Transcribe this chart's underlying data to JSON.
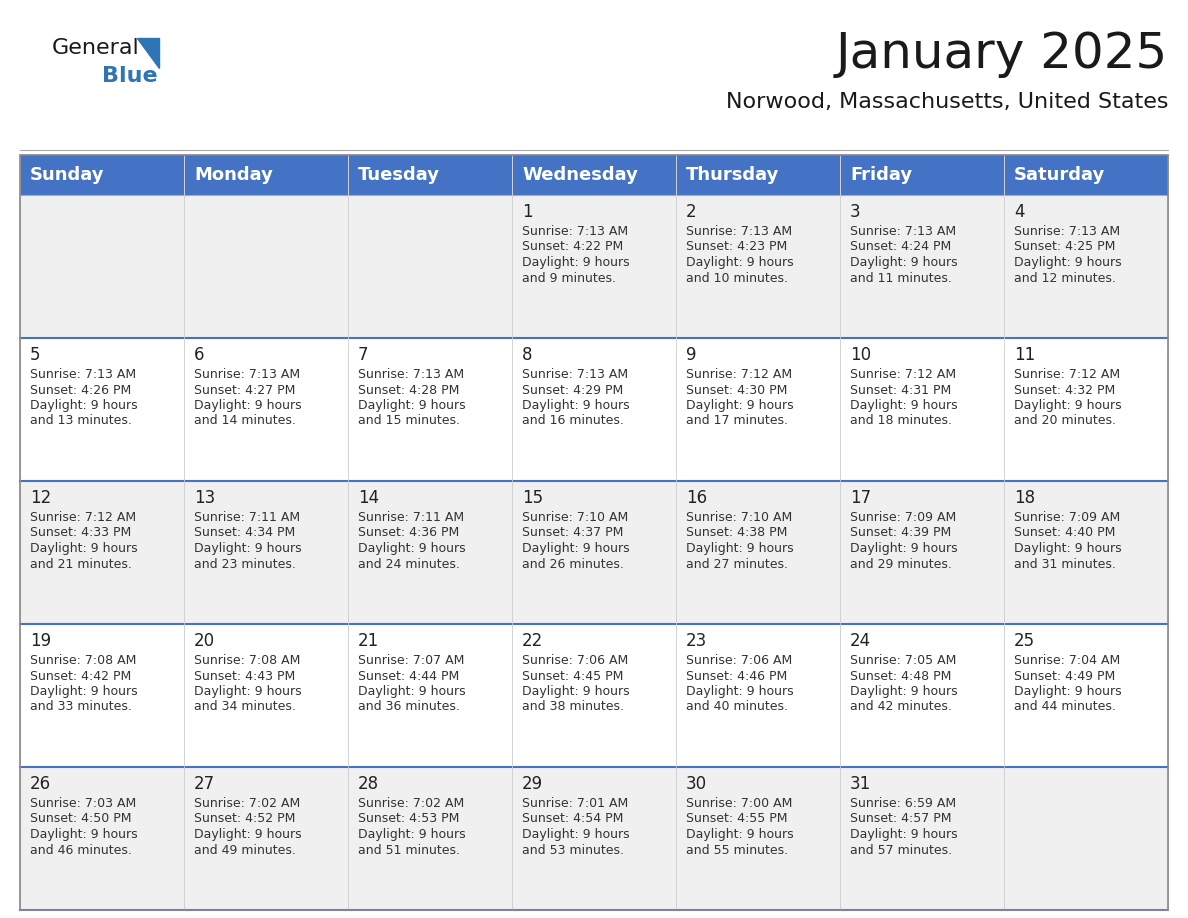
{
  "title": "January 2025",
  "subtitle": "Norwood, Massachusetts, United States",
  "header_bg_color": "#4472C4",
  "header_text_color": "#FFFFFF",
  "cell_bg_color_odd": "#F0F0F0",
  "cell_bg_color_even": "#FFFFFF",
  "cell_text_color": "#333333",
  "day_number_color": "#222222",
  "row_divider_color": "#4472C4",
  "col_divider_color": "#CCCCCC",
  "days_of_week": [
    "Sunday",
    "Monday",
    "Tuesday",
    "Wednesday",
    "Thursday",
    "Friday",
    "Saturday"
  ],
  "calendar_data": [
    [
      {
        "day": "",
        "sunrise": "",
        "sunset": "",
        "daylight": ""
      },
      {
        "day": "",
        "sunrise": "",
        "sunset": "",
        "daylight": ""
      },
      {
        "day": "",
        "sunrise": "",
        "sunset": "",
        "daylight": ""
      },
      {
        "day": "1",
        "sunrise": "Sunrise: 7:13 AM",
        "sunset": "Sunset: 4:22 PM",
        "daylight": "Daylight: 9 hours\nand 9 minutes."
      },
      {
        "day": "2",
        "sunrise": "Sunrise: 7:13 AM",
        "sunset": "Sunset: 4:23 PM",
        "daylight": "Daylight: 9 hours\nand 10 minutes."
      },
      {
        "day": "3",
        "sunrise": "Sunrise: 7:13 AM",
        "sunset": "Sunset: 4:24 PM",
        "daylight": "Daylight: 9 hours\nand 11 minutes."
      },
      {
        "day": "4",
        "sunrise": "Sunrise: 7:13 AM",
        "sunset": "Sunset: 4:25 PM",
        "daylight": "Daylight: 9 hours\nand 12 minutes."
      }
    ],
    [
      {
        "day": "5",
        "sunrise": "Sunrise: 7:13 AM",
        "sunset": "Sunset: 4:26 PM",
        "daylight": "Daylight: 9 hours\nand 13 minutes."
      },
      {
        "day": "6",
        "sunrise": "Sunrise: 7:13 AM",
        "sunset": "Sunset: 4:27 PM",
        "daylight": "Daylight: 9 hours\nand 14 minutes."
      },
      {
        "day": "7",
        "sunrise": "Sunrise: 7:13 AM",
        "sunset": "Sunset: 4:28 PM",
        "daylight": "Daylight: 9 hours\nand 15 minutes."
      },
      {
        "day": "8",
        "sunrise": "Sunrise: 7:13 AM",
        "sunset": "Sunset: 4:29 PM",
        "daylight": "Daylight: 9 hours\nand 16 minutes."
      },
      {
        "day": "9",
        "sunrise": "Sunrise: 7:12 AM",
        "sunset": "Sunset: 4:30 PM",
        "daylight": "Daylight: 9 hours\nand 17 minutes."
      },
      {
        "day": "10",
        "sunrise": "Sunrise: 7:12 AM",
        "sunset": "Sunset: 4:31 PM",
        "daylight": "Daylight: 9 hours\nand 18 minutes."
      },
      {
        "day": "11",
        "sunrise": "Sunrise: 7:12 AM",
        "sunset": "Sunset: 4:32 PM",
        "daylight": "Daylight: 9 hours\nand 20 minutes."
      }
    ],
    [
      {
        "day": "12",
        "sunrise": "Sunrise: 7:12 AM",
        "sunset": "Sunset: 4:33 PM",
        "daylight": "Daylight: 9 hours\nand 21 minutes."
      },
      {
        "day": "13",
        "sunrise": "Sunrise: 7:11 AM",
        "sunset": "Sunset: 4:34 PM",
        "daylight": "Daylight: 9 hours\nand 23 minutes."
      },
      {
        "day": "14",
        "sunrise": "Sunrise: 7:11 AM",
        "sunset": "Sunset: 4:36 PM",
        "daylight": "Daylight: 9 hours\nand 24 minutes."
      },
      {
        "day": "15",
        "sunrise": "Sunrise: 7:10 AM",
        "sunset": "Sunset: 4:37 PM",
        "daylight": "Daylight: 9 hours\nand 26 minutes."
      },
      {
        "day": "16",
        "sunrise": "Sunrise: 7:10 AM",
        "sunset": "Sunset: 4:38 PM",
        "daylight": "Daylight: 9 hours\nand 27 minutes."
      },
      {
        "day": "17",
        "sunrise": "Sunrise: 7:09 AM",
        "sunset": "Sunset: 4:39 PM",
        "daylight": "Daylight: 9 hours\nand 29 minutes."
      },
      {
        "day": "18",
        "sunrise": "Sunrise: 7:09 AM",
        "sunset": "Sunset: 4:40 PM",
        "daylight": "Daylight: 9 hours\nand 31 minutes."
      }
    ],
    [
      {
        "day": "19",
        "sunrise": "Sunrise: 7:08 AM",
        "sunset": "Sunset: 4:42 PM",
        "daylight": "Daylight: 9 hours\nand 33 minutes."
      },
      {
        "day": "20",
        "sunrise": "Sunrise: 7:08 AM",
        "sunset": "Sunset: 4:43 PM",
        "daylight": "Daylight: 9 hours\nand 34 minutes."
      },
      {
        "day": "21",
        "sunrise": "Sunrise: 7:07 AM",
        "sunset": "Sunset: 4:44 PM",
        "daylight": "Daylight: 9 hours\nand 36 minutes."
      },
      {
        "day": "22",
        "sunrise": "Sunrise: 7:06 AM",
        "sunset": "Sunset: 4:45 PM",
        "daylight": "Daylight: 9 hours\nand 38 minutes."
      },
      {
        "day": "23",
        "sunrise": "Sunrise: 7:06 AM",
        "sunset": "Sunset: 4:46 PM",
        "daylight": "Daylight: 9 hours\nand 40 minutes."
      },
      {
        "day": "24",
        "sunrise": "Sunrise: 7:05 AM",
        "sunset": "Sunset: 4:48 PM",
        "daylight": "Daylight: 9 hours\nand 42 minutes."
      },
      {
        "day": "25",
        "sunrise": "Sunrise: 7:04 AM",
        "sunset": "Sunset: 4:49 PM",
        "daylight": "Daylight: 9 hours\nand 44 minutes."
      }
    ],
    [
      {
        "day": "26",
        "sunrise": "Sunrise: 7:03 AM",
        "sunset": "Sunset: 4:50 PM",
        "daylight": "Daylight: 9 hours\nand 46 minutes."
      },
      {
        "day": "27",
        "sunrise": "Sunrise: 7:02 AM",
        "sunset": "Sunset: 4:52 PM",
        "daylight": "Daylight: 9 hours\nand 49 minutes."
      },
      {
        "day": "28",
        "sunrise": "Sunrise: 7:02 AM",
        "sunset": "Sunset: 4:53 PM",
        "daylight": "Daylight: 9 hours\nand 51 minutes."
      },
      {
        "day": "29",
        "sunrise": "Sunrise: 7:01 AM",
        "sunset": "Sunset: 4:54 PM",
        "daylight": "Daylight: 9 hours\nand 53 minutes."
      },
      {
        "day": "30",
        "sunrise": "Sunrise: 7:00 AM",
        "sunset": "Sunset: 4:55 PM",
        "daylight": "Daylight: 9 hours\nand 55 minutes."
      },
      {
        "day": "31",
        "sunrise": "Sunrise: 6:59 AM",
        "sunset": "Sunset: 4:57 PM",
        "daylight": "Daylight: 9 hours\nand 57 minutes."
      },
      {
        "day": "",
        "sunrise": "",
        "sunset": "",
        "daylight": ""
      }
    ]
  ],
  "logo_general_color": "#1a1a1a",
  "logo_blue_color": "#2E75B6",
  "logo_triangle_color": "#2E75B6"
}
